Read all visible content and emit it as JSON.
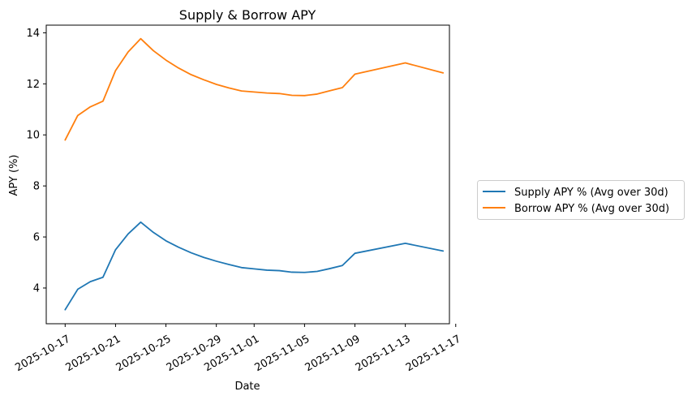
{
  "chart_data": {
    "type": "line",
    "title": "Supply & Borrow APY",
    "xlabel": "Date",
    "ylabel": "APY (%)",
    "x_ticks": [
      "2025-10-17",
      "2025-10-21",
      "2025-10-25",
      "2025-10-29",
      "2025-11-01",
      "2025-11-05",
      "2025-11-09",
      "2025-11-13",
      "2025-11-17"
    ],
    "y_ticks": [
      "4",
      "6",
      "8",
      "10",
      "12",
      "14"
    ],
    "xlim": [
      "2025-10-15T12:00",
      "2025-11-16T12:00"
    ],
    "ylim": [
      2.6,
      14.3
    ],
    "grid": false,
    "legend_position": "outside-right",
    "x": [
      "2025-10-17",
      "2025-10-18",
      "2025-10-19",
      "2025-10-20",
      "2025-10-21",
      "2025-10-22",
      "2025-10-23",
      "2025-10-24",
      "2025-10-25",
      "2025-10-26",
      "2025-10-27",
      "2025-10-28",
      "2025-10-29",
      "2025-10-30",
      "2025-10-31",
      "2025-11-01",
      "2025-11-02",
      "2025-11-03",
      "2025-11-04",
      "2025-11-05",
      "2025-11-06",
      "2025-11-07",
      "2025-11-08",
      "2025-11-09",
      "2025-11-13",
      "2025-11-16"
    ],
    "series": [
      {
        "name": "Supply APY % (Avg over 30d)",
        "color": "#1f77b4",
        "values": [
          3.15,
          3.95,
          4.25,
          4.42,
          5.5,
          6.12,
          6.58,
          6.18,
          5.85,
          5.6,
          5.38,
          5.2,
          5.05,
          4.92,
          4.8,
          4.75,
          4.7,
          4.68,
          4.62,
          4.61,
          4.65,
          4.76,
          4.88,
          5.36,
          5.75,
          5.45
        ]
      },
      {
        "name": "Borrow APY % (Avg over 30d)",
        "color": "#ff7f0e",
        "values": [
          9.8,
          10.76,
          11.1,
          11.32,
          12.52,
          13.25,
          13.77,
          13.3,
          12.93,
          12.62,
          12.36,
          12.16,
          11.98,
          11.84,
          11.72,
          11.68,
          11.64,
          11.62,
          11.55,
          11.54,
          11.6,
          11.73,
          11.85,
          12.38,
          12.82,
          12.43
        ]
      }
    ]
  }
}
